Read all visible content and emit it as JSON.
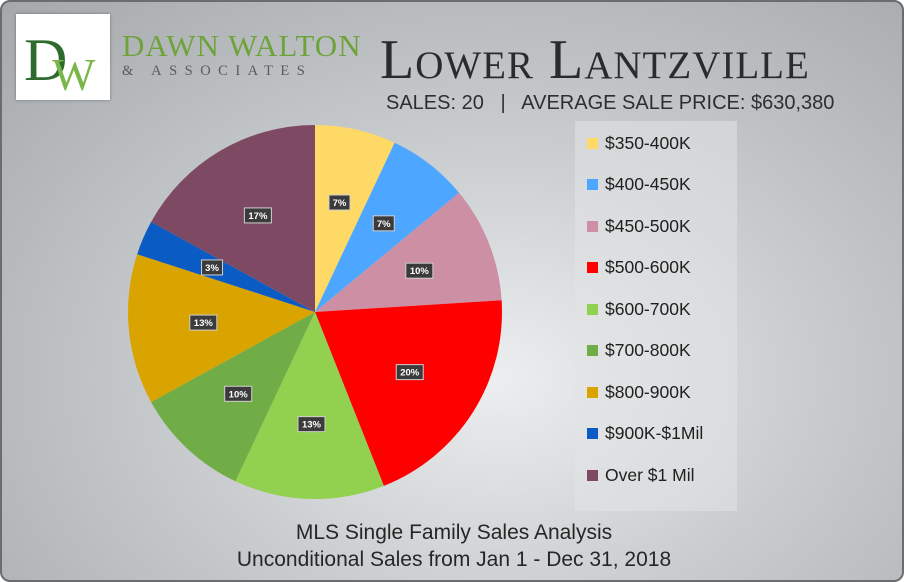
{
  "header": {
    "logo_initials": "DW",
    "logo_name": "DAWN WALTON",
    "logo_subname": "& ASSOCIATES",
    "title": "Lower Lantzville",
    "stats": "SALES: 20   |   AVERAGE SALE PRICE: $630,380"
  },
  "footer": {
    "line1": "MLS Single Family Sales Analysis",
    "line2": "Unconditional Sales from Jan 1 - Dec 31, 2018"
  },
  "colors": {
    "logo_d": "#2f6b2f",
    "logo_w": "#7ab648",
    "label_bg": "#3b3b3b",
    "label_text": "#ffffff"
  },
  "chart_data": {
    "type": "pie",
    "title": "",
    "categories": [
      "$350-400K",
      "$400-450K",
      "$450-500K",
      "$500-600K",
      "$600-700K",
      "$700-800K",
      "$800-900K",
      "$900K-$1Mil",
      "Over $1 Mil"
    ],
    "values": [
      7,
      7,
      10,
      20,
      13,
      10,
      13,
      3,
      17
    ],
    "labels": [
      "7%",
      "7%",
      "10%",
      "20%",
      "13%",
      "10%",
      "13%",
      "3%",
      "17%"
    ],
    "colors": [
      "#ffd966",
      "#4da6ff",
      "#cc8fa3",
      "#ff0000",
      "#92d050",
      "#70ad47",
      "#d9a300",
      "#0b5bc4",
      "#7e4a63"
    ],
    "legend_position": "right"
  }
}
